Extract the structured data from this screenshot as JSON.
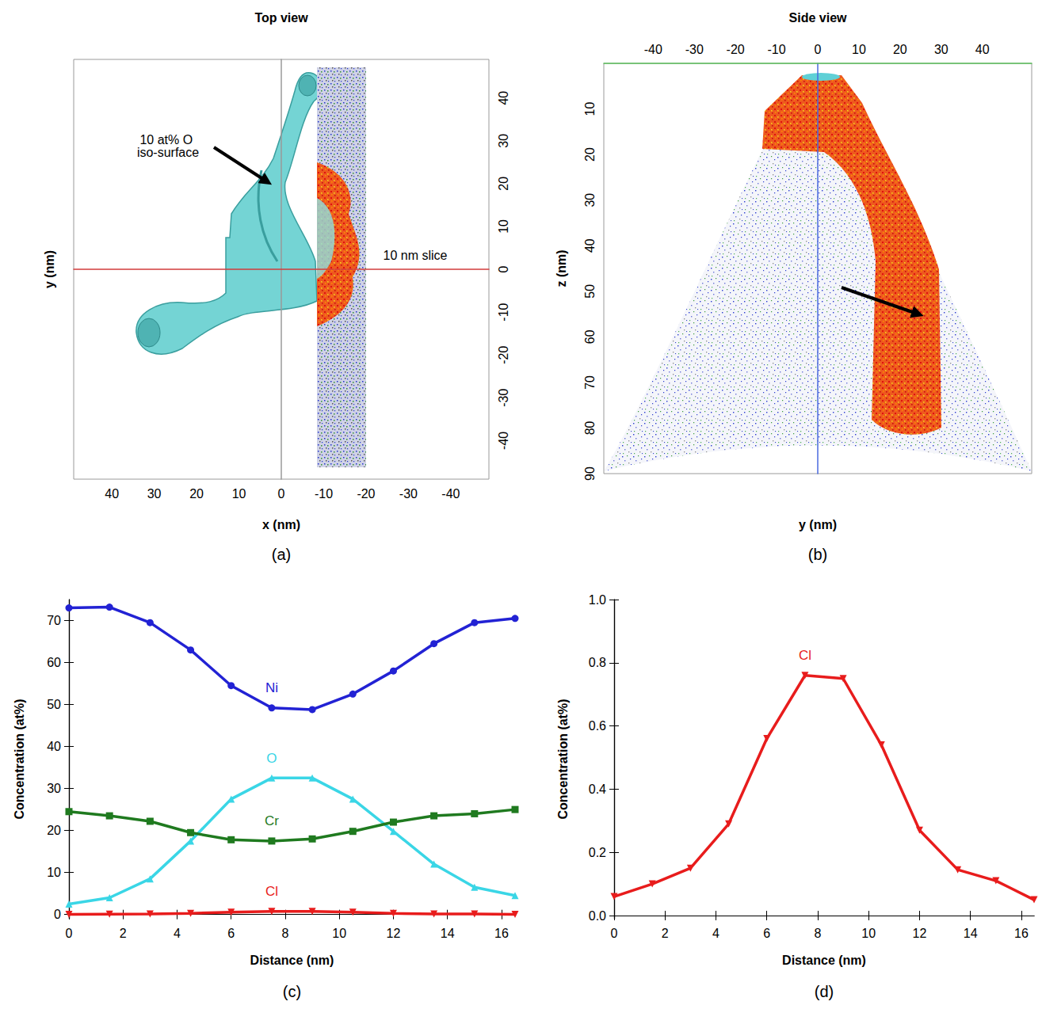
{
  "chart_data": [
    {
      "type": "atom_map",
      "panel": "(a)",
      "title": "Top view",
      "xlabel": "x (nm)",
      "ylabel": "y (nm)",
      "xlim": [
        49,
        -49
      ],
      "xticks": [
        40,
        30,
        20,
        10,
        0,
        -10,
        -20,
        -30,
        -40
      ],
      "ylim": [
        -49,
        49
      ],
      "yticks": [
        -40,
        -30,
        -20,
        -10,
        0,
        10,
        20,
        30,
        40
      ],
      "annotations": [
        "10 at% O iso-surface",
        "10 nm slice"
      ],
      "tick_labels": true
    },
    {
      "type": "atom_map",
      "panel": "(b)",
      "title": "Side view",
      "xlabel": "y (nm)",
      "ylabel": "z (nm)",
      "xlim": [
        -52,
        52
      ],
      "xticks": [
        -40,
        -30,
        -20,
        -10,
        0,
        10,
        20,
        30,
        40
      ],
      "ylim": [
        90,
        0
      ],
      "yticks": [
        10,
        20,
        30,
        40,
        50,
        60,
        70,
        80,
        90
      ],
      "tick_labels": true
    },
    {
      "type": "line",
      "panel": "(c)",
      "xlabel": "Distance (nm)",
      "ylabel": "Concentration (at%)",
      "x": [
        0,
        1.5,
        3,
        4.5,
        6,
        7.5,
        9,
        10.5,
        12,
        13.5,
        15,
        16.5
      ],
      "xlim": [
        0,
        16.5
      ],
      "xticks": [
        0,
        2,
        4,
        6,
        8,
        10,
        12,
        14,
        16
      ],
      "ylim": [
        -1,
        75
      ],
      "yticks": [
        0,
        10,
        20,
        30,
        40,
        50,
        60,
        70
      ],
      "series": [
        {
          "name": "Ni",
          "color": "#2222d4",
          "marker": "circle",
          "values": [
            73,
            73.2,
            69.5,
            63,
            54.5,
            49.2,
            48.8,
            52.5,
            58,
            64.5,
            69.5,
            70.5
          ]
        },
        {
          "name": "O",
          "color": "#3ad6e6",
          "marker": "triangle",
          "values": [
            2.5,
            4,
            8.5,
            17.5,
            27.5,
            32.5,
            32.5,
            27.5,
            19.8,
            12,
            6.5,
            4.5
          ]
        },
        {
          "name": "Cr",
          "color": "#1f7a1f",
          "marker": "square",
          "values": [
            24.5,
            23.5,
            22.2,
            19.5,
            17.8,
            17.5,
            18,
            19.8,
            22,
            23.5,
            24,
            25
          ]
        },
        {
          "name": "Cl",
          "color": "#e81c1c",
          "marker": "triangle_down",
          "values": [
            0.06,
            0.1,
            0.15,
            0.29,
            0.56,
            0.76,
            0.75,
            0.54,
            0.27,
            0.145,
            0.11,
            0.05
          ]
        }
      ]
    },
    {
      "type": "line",
      "panel": "(d)",
      "xlabel": "Distance (nm)",
      "ylabel": "Concentration (at%)",
      "x": [
        0,
        1.5,
        3,
        4.5,
        6,
        7.5,
        9,
        10.5,
        12,
        13.5,
        15,
        16.5
      ],
      "xlim": [
        0,
        16.5
      ],
      "xticks": [
        0,
        2,
        4,
        6,
        8,
        10,
        12,
        14,
        16
      ],
      "ylim": [
        -0.01,
        1
      ],
      "yticks": [
        {
          "value": 0,
          "label": "0.0"
        },
        0.2,
        0.4,
        0.6,
        0.8,
        {
          "value": 1,
          "label": "1.0"
        }
      ],
      "series": [
        {
          "name": "Cl",
          "color": "#e81c1c",
          "marker": "triangle_down",
          "values": [
            0.06,
            0.1,
            0.15,
            0.29,
            0.56,
            0.76,
            0.75,
            0.54,
            0.27,
            0.145,
            0.11,
            0.05
          ]
        }
      ]
    }
  ]
}
